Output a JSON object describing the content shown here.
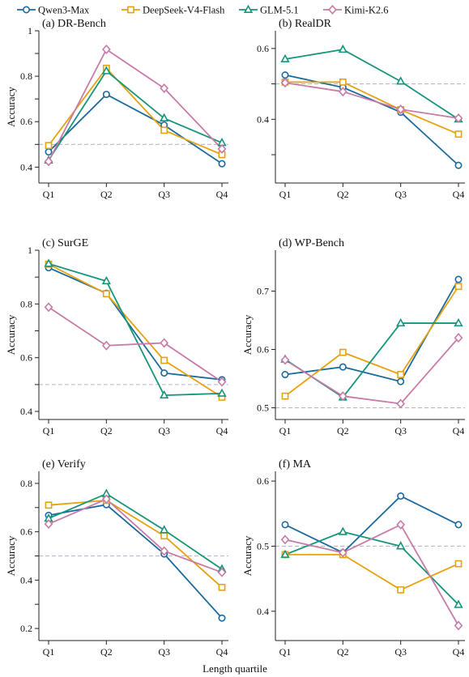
{
  "legend": {
    "items": [
      {
        "name": "Qwen3-Max",
        "color": "#1a6a9e",
        "marker": "circle"
      },
      {
        "name": "DeepSeek-V4-Flash",
        "color": "#e6a20f",
        "marker": "square"
      },
      {
        "name": "GLM-5.1",
        "color": "#17947a",
        "marker": "triangle"
      },
      {
        "name": "Kimi-K2.6",
        "color": "#c77ba6",
        "marker": "diamond"
      }
    ]
  },
  "reference_line": {
    "value": 0.5,
    "color": "#b4b8cf"
  },
  "xlabel": "Length quartile",
  "chart_data": [
    {
      "type": "line",
      "title": "(a) DR-Bench",
      "ylabel": "Accuracy",
      "categories": [
        "Q1",
        "Q2",
        "Q3",
        "Q4"
      ],
      "ylim": [
        0.33,
        1.0
      ],
      "yticks": [
        0.4,
        0.5,
        0.6,
        0.7,
        0.8,
        0.9,
        1.0
      ],
      "ytick_labels": [
        "0.4",
        "",
        "0.6",
        "",
        "0.8",
        "",
        "1"
      ],
      "series": [
        {
          "name": "Qwen3-Max",
          "values": [
            0.467,
            0.72,
            0.585,
            0.415
          ]
        },
        {
          "name": "DeepSeek-V4-Flash",
          "values": [
            0.495,
            0.835,
            0.562,
            0.455
          ]
        },
        {
          "name": "GLM-5.1",
          "values": [
            0.43,
            0.823,
            0.615,
            0.507
          ]
        },
        {
          "name": "Kimi-K2.6",
          "values": [
            0.425,
            0.918,
            0.747,
            0.48
          ]
        }
      ]
    },
    {
      "type": "line",
      "title": "(b) RealDR",
      "ylabel": "",
      "categories": [
        "Q1",
        "Q2",
        "Q3",
        "Q4"
      ],
      "ylim": [
        0.22,
        0.65
      ],
      "yticks": [
        0.3,
        0.4,
        0.5,
        0.6
      ],
      "ytick_labels": [
        "",
        "0.4",
        "",
        "0.6"
      ],
      "series": [
        {
          "name": "Qwen3-Max",
          "values": [
            0.525,
            0.49,
            0.42,
            0.27
          ]
        },
        {
          "name": "DeepSeek-V4-Flash",
          "values": [
            0.505,
            0.505,
            0.427,
            0.358
          ]
        },
        {
          "name": "GLM-5.1",
          "values": [
            0.57,
            0.597,
            0.507,
            0.4
          ]
        },
        {
          "name": "Kimi-K2.6",
          "values": [
            0.503,
            0.478,
            0.428,
            0.403
          ]
        }
      ]
    },
    {
      "type": "line",
      "title": "(c) SurGE",
      "ylabel": "Accuracy",
      "categories": [
        "Q1",
        "Q2",
        "Q3",
        "Q4"
      ],
      "ylim": [
        0.37,
        1.0
      ],
      "yticks": [
        0.4,
        0.5,
        0.6,
        0.7,
        0.8,
        0.9,
        1.0
      ],
      "ytick_labels": [
        "0.4",
        "",
        "0.6",
        "",
        "0.8",
        "",
        "1"
      ],
      "series": [
        {
          "name": "Qwen3-Max",
          "values": [
            0.935,
            0.84,
            0.543,
            0.518
          ]
        },
        {
          "name": "DeepSeek-V4-Flash",
          "values": [
            0.948,
            0.838,
            0.59,
            0.453
          ]
        },
        {
          "name": "GLM-5.1",
          "values": [
            0.95,
            0.885,
            0.46,
            0.467
          ]
        },
        {
          "name": "Kimi-K2.6",
          "values": [
            0.788,
            0.645,
            0.655,
            0.51
          ]
        }
      ]
    },
    {
      "type": "line",
      "title": "(d) WP-Bench",
      "ylabel": "Accuracy",
      "categories": [
        "Q1",
        "Q2",
        "Q3",
        "Q4"
      ],
      "ylim": [
        0.48,
        0.77
      ],
      "yticks": [
        0.5,
        0.6,
        0.7
      ],
      "ytick_labels": [
        "0.5",
        "0.6",
        "0.7"
      ],
      "series": [
        {
          "name": "Qwen3-Max",
          "values": [
            0.557,
            0.57,
            0.545,
            0.72
          ]
        },
        {
          "name": "DeepSeek-V4-Flash",
          "values": [
            0.52,
            0.595,
            0.557,
            0.708
          ]
        },
        {
          "name": "GLM-5.1",
          "values": [
            0.583,
            0.518,
            0.645,
            0.645
          ]
        },
        {
          "name": "Kimi-K2.6",
          "values": [
            0.582,
            0.52,
            0.507,
            0.62
          ]
        }
      ]
    },
    {
      "type": "line",
      "title": "(e) Verify",
      "ylabel": "Accuracy",
      "categories": [
        "Q1",
        "Q2",
        "Q3",
        "Q4"
      ],
      "ylim": [
        0.15,
        0.85
      ],
      "yticks": [
        0.2,
        0.3,
        0.4,
        0.5,
        0.6,
        0.7,
        0.8
      ],
      "ytick_labels": [
        "0.2",
        "",
        "0.4",
        "",
        "0.6",
        "",
        "0.8"
      ],
      "series": [
        {
          "name": "Qwen3-Max",
          "values": [
            0.668,
            0.712,
            0.508,
            0.243
          ]
        },
        {
          "name": "DeepSeek-V4-Flash",
          "values": [
            0.71,
            0.73,
            0.583,
            0.37
          ]
        },
        {
          "name": "GLM-5.1",
          "values": [
            0.655,
            0.757,
            0.607,
            0.445
          ]
        },
        {
          "name": "Kimi-K2.6",
          "values": [
            0.632,
            0.735,
            0.52,
            0.432
          ]
        }
      ]
    },
    {
      "type": "line",
      "title": "(f) MA",
      "ylabel": "Accuracy",
      "categories": [
        "Q1",
        "Q2",
        "Q3",
        "Q4"
      ],
      "ylim": [
        0.355,
        0.615
      ],
      "yticks": [
        0.4,
        0.5,
        0.6
      ],
      "ytick_labels": [
        "0.4",
        "0.5",
        "0.6"
      ],
      "series": [
        {
          "name": "Qwen3-Max",
          "values": [
            0.533,
            0.49,
            0.577,
            0.533
          ]
        },
        {
          "name": "DeepSeek-V4-Flash",
          "values": [
            0.487,
            0.487,
            0.433,
            0.473
          ]
        },
        {
          "name": "GLM-5.1",
          "values": [
            0.487,
            0.522,
            0.5,
            0.41
          ]
        },
        {
          "name": "Kimi-K2.6",
          "values": [
            0.51,
            0.49,
            0.533,
            0.378
          ]
        }
      ]
    }
  ]
}
